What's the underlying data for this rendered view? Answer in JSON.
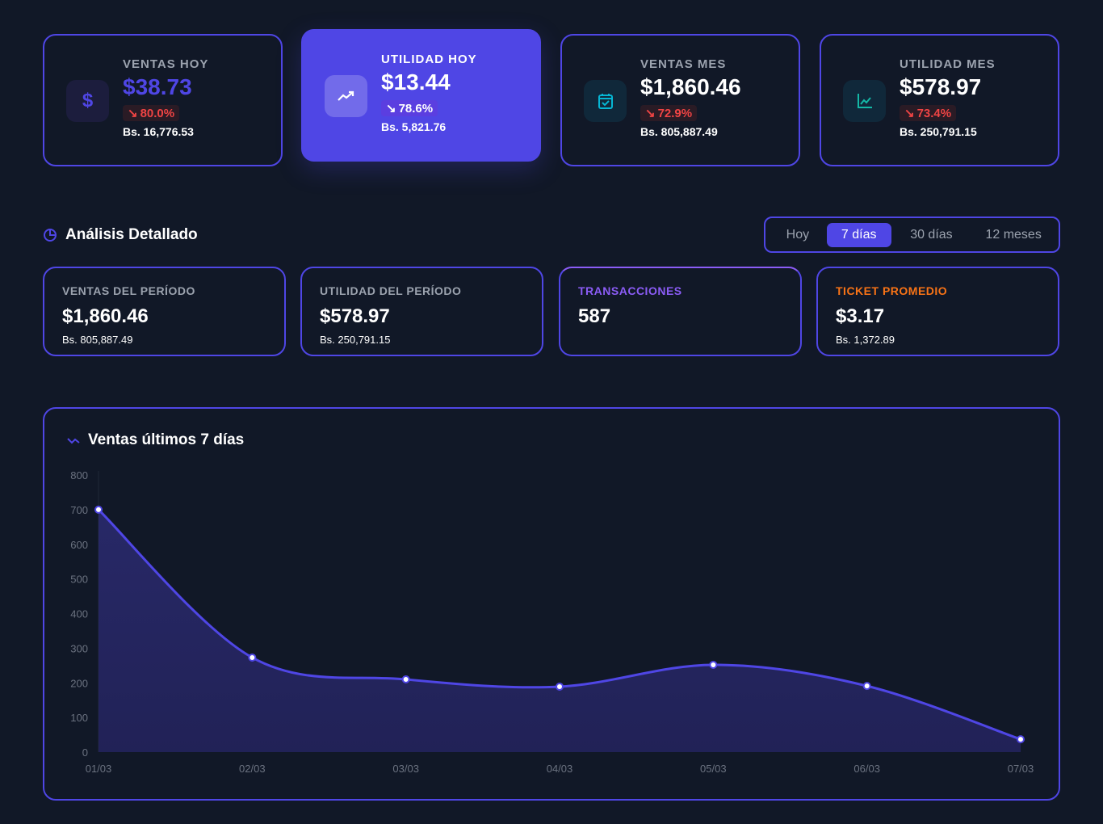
{
  "top_cards": [
    {
      "label": "VENTAS HOY",
      "value": "$38.73",
      "change": "80.0%",
      "bs": "Bs. 16,776.53",
      "icon": "dollar-icon"
    },
    {
      "label": "UTILIDAD HOY",
      "value": "$13.44",
      "change": "78.6%",
      "bs": "Bs. 5,821.76",
      "icon": "trending-up-icon"
    },
    {
      "label": "VENTAS MES",
      "value": "$1,860.46",
      "change": "72.9%",
      "bs": "Bs. 805,887.49",
      "icon": "calendar-check-icon"
    },
    {
      "label": "UTILIDAD MES",
      "value": "$578.97",
      "change": "73.4%",
      "bs": "Bs. 250,791.15",
      "icon": "line-chart-icon"
    }
  ],
  "analysis": {
    "title": "Análisis Detallado",
    "tabs": [
      "Hoy",
      "7 días",
      "30 días",
      "12 meses"
    ],
    "active_tab": "7 días"
  },
  "period_cards": [
    {
      "label": "VENTAS DEL PERÍODO",
      "value": "$1,860.46",
      "bs": "Bs. 805,887.49"
    },
    {
      "label": "UTILIDAD DEL PERÍODO",
      "value": "$578.97",
      "bs": "Bs. 250,791.15"
    },
    {
      "label": "TRANSACCIONES",
      "value": "587"
    },
    {
      "label": "TICKET PROMEDIO",
      "value": "$3.17",
      "bs": "Bs. 1,372.89"
    }
  ],
  "colors": {
    "accent": "#4f46e5",
    "danger": "#ef4444",
    "cyan": "#06b6d4",
    "teal": "#14b8a6",
    "orange": "#f97316",
    "purple": "#8b5cf6"
  },
  "chart_data": {
    "type": "area",
    "title": "Ventas últimos 7 días",
    "categories": [
      "01/03",
      "02/03",
      "03/03",
      "04/03",
      "05/03",
      "06/03",
      "07/03"
    ],
    "values": [
      700,
      273,
      210,
      189,
      252,
      191,
      37
    ],
    "ylim": [
      0,
      800
    ],
    "yticks": [
      "0",
      "100",
      "200",
      "300",
      "400",
      "500",
      "600",
      "700",
      "800"
    ]
  }
}
